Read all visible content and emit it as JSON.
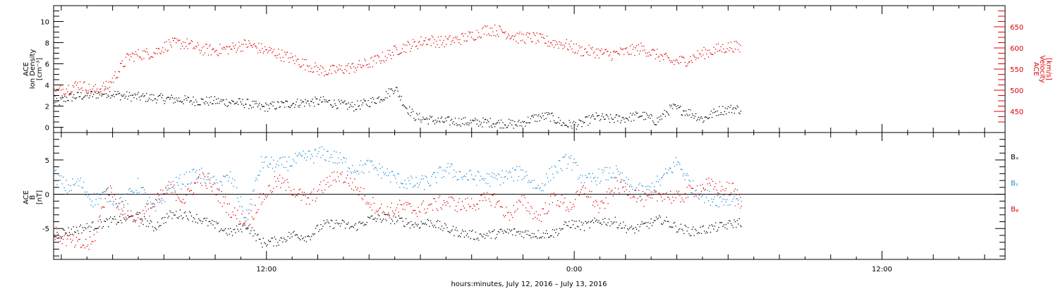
{
  "page": {
    "xlabel": "hours:minutes, July 12, 2016 – July 13, 2016"
  },
  "colors": {
    "density": "#000000",
    "velocity": "#e00000",
    "bx": "#000000",
    "by": "#1a8ad4",
    "bz": "#e00000",
    "axes": "#000000"
  },
  "chart_data": [
    {
      "type": "scatter",
      "panel": "plasma",
      "x_unit": "hours since July 12, 2016 00:00",
      "xlim": [
        3.7,
        40.8
      ],
      "x_tick_labels": [
        "12:00",
        "0:00",
        "12:00"
      ],
      "x_tick_values": [
        12,
        24,
        36
      ],
      "ylabel_left": [
        "ACE",
        "Ion Density",
        "[cm⁻³]"
      ],
      "ylim_left": [
        -0.5,
        11.5
      ],
      "y_ticks_left": [
        0,
        2,
        4,
        6,
        8,
        10
      ],
      "ylabel_right": [
        "ACE",
        "Velocity",
        "[km/s]"
      ],
      "ylim_right": [
        400,
        700
      ],
      "y_ticks_right": [
        450,
        500,
        550,
        600,
        650
      ],
      "series": [
        {
          "axis": "left",
          "x": [
            3.7,
            4.2,
            4.7,
            5.2,
            5.8,
            6.4,
            7.0,
            7.6,
            8.2,
            8.8,
            9.4,
            10.0,
            10.6,
            11.2,
            11.8,
            12.4,
            13.0,
            13.6,
            14.2,
            14.8,
            15.4,
            16.0,
            16.6,
            17.0,
            17.4,
            17.8,
            18.2,
            18.8,
            19.4,
            20.0,
            20.6,
            21.2,
            21.8,
            22.4,
            23.0,
            23.6,
            24.2,
            24.8,
            25.4,
            26.0,
            26.6,
            27.2,
            27.8,
            28.4,
            29.0,
            29.6,
            30.2,
            30.5
          ],
          "y": [
            2.2,
            2.8,
            3.0,
            3.1,
            3.3,
            3.0,
            2.9,
            2.8,
            2.7,
            2.6,
            2.5,
            2.5,
            2.4,
            2.3,
            1.9,
            2.1,
            2.3,
            2.4,
            2.5,
            2.2,
            2.0,
            2.4,
            3.0,
            3.8,
            2.0,
            1.0,
            0.8,
            0.6,
            0.6,
            0.5,
            0.5,
            0.4,
            0.3,
            0.9,
            1.1,
            0.3,
            0.3,
            1.0,
            0.8,
            0.9,
            1.2,
            0.6,
            1.9,
            1.5,
            0.8,
            1.6,
            1.8,
            1.7
          ],
          "jitter": 0.45
        },
        {
          "axis": "right",
          "x": [
            3.7,
            4.2,
            4.7,
            5.2,
            5.8,
            6.2,
            6.6,
            7.0,
            7.6,
            8.2,
            8.8,
            9.4,
            10.0,
            10.6,
            11.2,
            11.8,
            12.4,
            13.0,
            13.6,
            14.0,
            14.4,
            14.8,
            15.4,
            16.0,
            16.6,
            17.2,
            17.8,
            18.2,
            18.8,
            19.4,
            20.0,
            20.6,
            21.2,
            21.8,
            22.4,
            23.0,
            23.6,
            24.2,
            24.8,
            25.4,
            26.0,
            26.6,
            27.2,
            27.8,
            28.4,
            29.0,
            29.6,
            30.2,
            30.5
          ],
          "y": [
            495,
            505,
            515,
            500,
            510,
            545,
            580,
            585,
            590,
            610,
            612,
            598,
            595,
            600,
            610,
            598,
            588,
            575,
            560,
            550,
            545,
            550,
            555,
            565,
            580,
            600,
            610,
            620,
            615,
            620,
            630,
            645,
            640,
            625,
            625,
            615,
            610,
            595,
            592,
            585,
            592,
            600,
            585,
            568,
            572,
            588,
            598,
            605,
            600
          ],
          "jitter": 14
        }
      ]
    },
    {
      "type": "scatter",
      "panel": "magnetic-field",
      "x_unit": "hours since July 12, 2016 00:00",
      "xlim": [
        3.7,
        40.8
      ],
      "ylabel": [
        "ACE",
        "B",
        "[nT]"
      ],
      "ylim": [
        -9.5,
        9.0
      ],
      "y_ticks": [
        -5,
        0,
        5
      ],
      "zero_line": true,
      "legend_position": "right",
      "series": [
        {
          "name": "Bₓ",
          "x": [
            3.7,
            4.2,
            4.7,
            5.2,
            5.8,
            6.4,
            7.0,
            7.6,
            8.2,
            8.8,
            9.4,
            10.0,
            10.6,
            11.2,
            11.8,
            12.4,
            13.0,
            13.6,
            14.2,
            14.8,
            15.4,
            16.0,
            16.6,
            17.2,
            17.8,
            18.4,
            19.0,
            19.6,
            20.2,
            20.8,
            21.4,
            22.0,
            22.6,
            23.2,
            23.8,
            24.4,
            25.0,
            25.6,
            26.2,
            26.8,
            27.4,
            28.0,
            28.6,
            29.2,
            29.8,
            30.2,
            30.5
          ],
          "y": [
            -6.0,
            -5.4,
            -5.0,
            -4.6,
            -4.0,
            -3.6,
            -3.2,
            -4.8,
            -3.0,
            -2.8,
            -3.6,
            -4.6,
            -5.6,
            -4.4,
            -7.0,
            -6.8,
            -5.8,
            -6.2,
            -4.4,
            -4.2,
            -4.8,
            -3.6,
            -3.4,
            -3.8,
            -4.4,
            -4.0,
            -5.0,
            -5.6,
            -6.0,
            -5.8,
            -5.4,
            -5.6,
            -5.8,
            -5.6,
            -4.2,
            -4.6,
            -3.8,
            -4.0,
            -5.2,
            -4.4,
            -3.6,
            -4.8,
            -5.4,
            -5.0,
            -4.6,
            -4.2,
            -4.0
          ],
          "jitter": 0.7
        },
        {
          "name": "Bᵧ",
          "x": [
            3.7,
            4.2,
            4.7,
            5.2,
            5.8,
            6.4,
            7.0,
            7.6,
            8.2,
            8.8,
            9.4,
            10.0,
            10.6,
            11.2,
            11.8,
            12.4,
            13.0,
            13.6,
            14.2,
            14.8,
            15.4,
            16.0,
            16.6,
            17.2,
            17.8,
            18.4,
            19.0,
            19.6,
            20.2,
            20.8,
            21.4,
            22.0,
            22.6,
            23.2,
            23.8,
            24.4,
            25.0,
            25.6,
            26.2,
            26.8,
            27.4,
            28.0,
            28.6,
            29.2,
            29.8,
            30.2,
            30.5
          ],
          "y": [
            3.0,
            1.0,
            1.8,
            -0.8,
            0.0,
            -1.2,
            1.4,
            -2.4,
            1.0,
            2.2,
            3.0,
            1.5,
            2.5,
            -3.6,
            4.8,
            4.2,
            4.8,
            5.5,
            6.0,
            5.2,
            3.8,
            4.2,
            3.2,
            2.0,
            1.5,
            2.0,
            3.8,
            2.8,
            2.4,
            2.2,
            2.8,
            3.2,
            0.8,
            3.6,
            5.2,
            1.8,
            2.8,
            3.2,
            0.8,
            0.4,
            2.2,
            4.8,
            1.0,
            -0.4,
            -0.8,
            -0.4,
            -1.0
          ],
          "jitter": 1.1
        },
        {
          "name": "Bᵩ",
          "x": [
            3.7,
            4.2,
            4.7,
            5.2,
            5.8,
            6.4,
            7.0,
            7.6,
            8.2,
            8.8,
            9.4,
            10.0,
            10.6,
            11.2,
            11.8,
            12.4,
            13.0,
            13.6,
            14.2,
            14.8,
            15.4,
            16.0,
            16.6,
            17.2,
            17.8,
            18.4,
            19.0,
            19.6,
            20.2,
            20.8,
            21.4,
            22.0,
            22.6,
            23.2,
            23.8,
            24.4,
            25.0,
            25.6,
            26.2,
            26.8,
            27.4,
            28.0,
            28.6,
            29.2,
            29.8,
            30.2,
            30.5
          ],
          "y": [
            -5.6,
            -6.6,
            -7.4,
            -7.2,
            1.0,
            -2.4,
            -3.6,
            -1.4,
            1.0,
            -0.8,
            2.6,
            0.6,
            -2.4,
            -4.2,
            -0.6,
            2.0,
            0.8,
            -1.0,
            1.2,
            3.0,
            1.4,
            -1.0,
            -2.6,
            -1.8,
            -2.2,
            -1.6,
            -1.0,
            -1.6,
            -1.2,
            -0.4,
            -3.0,
            -1.0,
            -3.4,
            -0.4,
            -1.8,
            0.8,
            -2.2,
            1.4,
            0.6,
            -1.0,
            0.2,
            -0.6,
            0.6,
            1.4,
            0.8,
            0.8,
            -1.2
          ],
          "jitter": 1.1
        }
      ]
    }
  ]
}
